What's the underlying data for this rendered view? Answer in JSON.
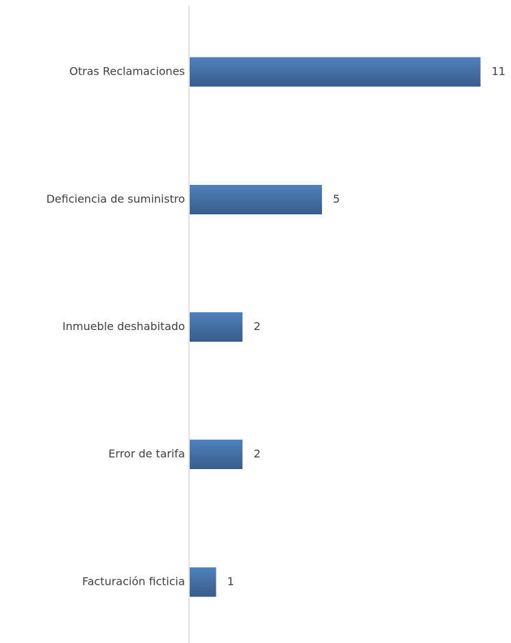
{
  "chart_data": {
    "type": "bar",
    "orientation": "horizontal",
    "categories": [
      "Otras Reclamaciones",
      "Deficiencia de suministro",
      "Inmueble deshabitado",
      "Error de tarifa",
      "Facturación ficticia"
    ],
    "values": [
      11,
      5,
      2,
      2,
      1
    ],
    "data_labels": [
      "11",
      "5",
      "2",
      "2",
      "1"
    ],
    "title": "",
    "xlabel": "",
    "ylabel": "",
    "xlim": [
      0,
      11
    ],
    "grid": false,
    "legend": "none",
    "colors": {
      "bar_top": "#4f81bd",
      "bar_bottom": "#385d8a",
      "axis": "#d9d9d9",
      "text": "#404040"
    }
  }
}
